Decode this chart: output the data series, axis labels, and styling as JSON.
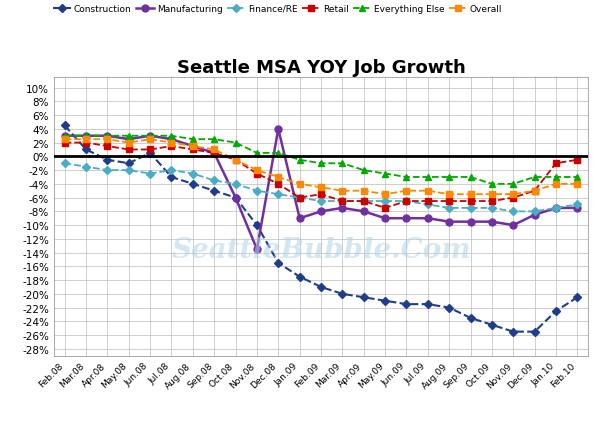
{
  "title": "Seattle MSA YOY Job Growth",
  "x_labels": [
    "Feb.08",
    "Mar.08",
    "Apr.08",
    "May.08",
    "Jun.08",
    "Jul.08",
    "Aug.08",
    "Sep.08",
    "Oct.08",
    "Nov.08",
    "Dec.08",
    "Jan.09",
    "Feb.09",
    "Mar.09",
    "Apr.09",
    "May.09",
    "Jun.09",
    "Jul.09",
    "Aug.09",
    "Sep.09",
    "Oct.09",
    "Nov.09",
    "Dec.09",
    "Jan.10",
    "Feb.10"
  ],
  "ylim": [
    -0.29,
    0.115
  ],
  "yticks": [
    0.1,
    0.08,
    0.06,
    0.04,
    0.02,
    0.0,
    -0.02,
    -0.04,
    -0.06,
    -0.08,
    -0.1,
    -0.12,
    -0.14,
    -0.16,
    -0.18,
    -0.2,
    -0.22,
    -0.24,
    -0.26,
    -0.28
  ],
  "series": {
    "Construction": {
      "color": "#1F3D8A",
      "marker": "D",
      "linestyle": "--",
      "markersize": 4,
      "linewidth": 1.5,
      "values": [
        0.045,
        0.01,
        -0.005,
        -0.01,
        0.005,
        -0.03,
        -0.04,
        -0.05,
        -0.06,
        -0.1,
        -0.155,
        -0.175,
        -0.19,
        -0.2,
        -0.205,
        -0.21,
        -0.215,
        -0.215,
        -0.22,
        -0.235,
        -0.245,
        -0.255,
        -0.255,
        -0.225,
        -0.205
      ]
    },
    "Manufacturing": {
      "color": "#7030A0",
      "marker": "o",
      "linestyle": "-",
      "markersize": 5,
      "linewidth": 1.8,
      "values": [
        0.03,
        0.03,
        0.03,
        0.025,
        0.03,
        0.025,
        0.015,
        0.005,
        -0.06,
        -0.135,
        0.04,
        -0.09,
        -0.08,
        -0.075,
        -0.08,
        -0.09,
        -0.09,
        -0.09,
        -0.095,
        -0.095,
        -0.095,
        -0.1,
        -0.085,
        -0.075,
        -0.075
      ]
    },
    "Finance/RE": {
      "color": "#4BACC6",
      "marker": "D",
      "linestyle": "--",
      "markersize": 4,
      "linewidth": 1.3,
      "values": [
        -0.01,
        -0.015,
        -0.02,
        -0.02,
        -0.025,
        -0.02,
        -0.025,
        -0.035,
        -0.04,
        -0.05,
        -0.055,
        -0.06,
        -0.065,
        -0.065,
        -0.065,
        -0.065,
        -0.065,
        -0.07,
        -0.075,
        -0.075,
        -0.075,
        -0.08,
        -0.08,
        -0.075,
        -0.07
      ]
    },
    "Retail": {
      "color": "#CC0000",
      "marker": "s",
      "linestyle": "--",
      "markersize": 4,
      "linewidth": 1.3,
      "values": [
        0.02,
        0.02,
        0.015,
        0.01,
        0.01,
        0.015,
        0.01,
        0.005,
        -0.005,
        -0.025,
        -0.04,
        -0.06,
        -0.055,
        -0.065,
        -0.065,
        -0.075,
        -0.065,
        -0.065,
        -0.065,
        -0.065,
        -0.065,
        -0.06,
        -0.05,
        -0.01,
        -0.005
      ]
    },
    "Everything Else": {
      "color": "#00AA00",
      "marker": "^",
      "linestyle": "--",
      "markersize": 5,
      "linewidth": 1.3,
      "values": [
        0.03,
        0.03,
        0.03,
        0.03,
        0.03,
        0.03,
        0.025,
        0.025,
        0.02,
        0.005,
        0.005,
        -0.005,
        -0.01,
        -0.01,
        -0.02,
        -0.025,
        -0.03,
        -0.03,
        -0.03,
        -0.03,
        -0.04,
        -0.04,
        -0.03,
        -0.03,
        -0.03
      ]
    },
    "Overall": {
      "color": "#FF8800",
      "marker": "s",
      "linestyle": "--",
      "markersize": 4,
      "linewidth": 1.3,
      "values": [
        0.025,
        0.025,
        0.025,
        0.02,
        0.025,
        0.02,
        0.015,
        0.01,
        -0.005,
        -0.02,
        -0.03,
        -0.04,
        -0.045,
        -0.05,
        -0.05,
        -0.055,
        -0.05,
        -0.05,
        -0.055,
        -0.055,
        -0.055,
        -0.055,
        -0.05,
        -0.04,
        -0.04
      ]
    }
  },
  "watermark": "SeattleBubble.Com",
  "background": "#FFFFFF",
  "grid_color": "#BBBBBB"
}
